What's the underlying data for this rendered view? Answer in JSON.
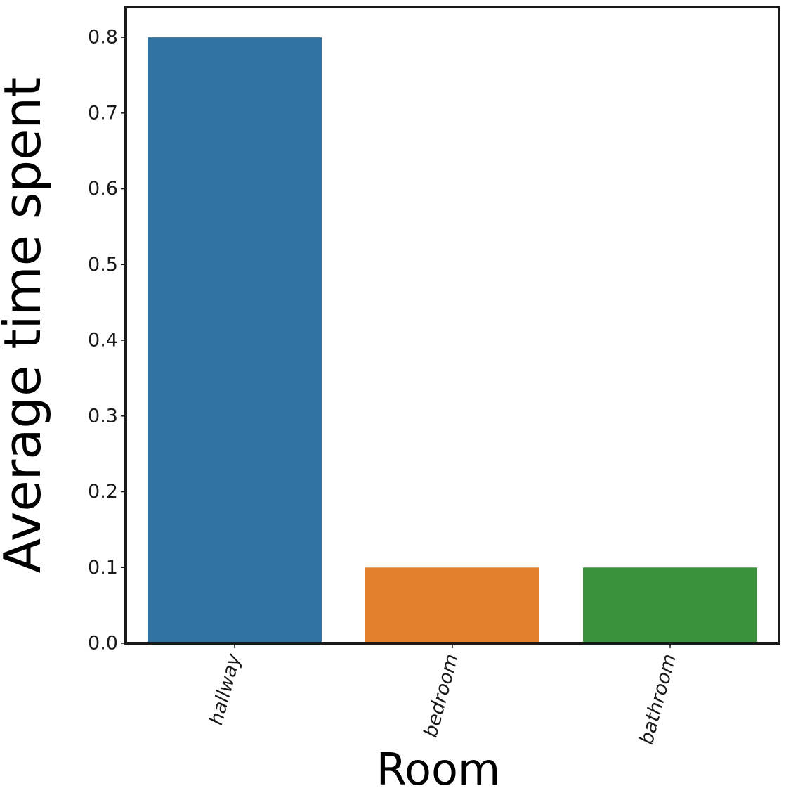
{
  "chart_data": {
    "type": "bar",
    "categories": [
      "hallway",
      "bedroom",
      "bathroom"
    ],
    "values": [
      0.8,
      0.1,
      0.1
    ],
    "colors": [
      "#3274a1",
      "#e1812c",
      "#3a923a"
    ],
    "xlabel": "Room",
    "ylabel": "Average time spent",
    "ylim": [
      0,
      0.84
    ],
    "yticks": [
      0.0,
      0.1,
      0.2,
      0.3,
      0.4,
      0.5,
      0.6,
      0.7,
      0.8
    ],
    "ytick_labels": [
      "0.0",
      "0.1",
      "0.2",
      "0.3",
      "0.4",
      "0.5",
      "0.6",
      "0.7",
      "0.8"
    ],
    "grid": false,
    "legend": "none",
    "xtick_rotation": -75
  }
}
